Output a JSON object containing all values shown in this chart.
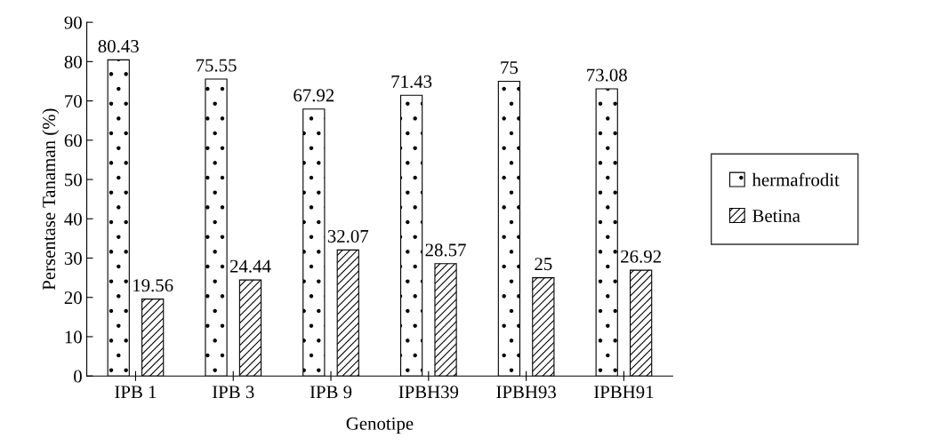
{
  "chart_data": {
    "type": "bar",
    "xlabel": "Genotipe",
    "ylabel": "Persentase Tanaman (%)",
    "categories": [
      "IPB 1",
      "IPB 3",
      "IPB 9",
      "IPBH39",
      "IPBH93",
      "IPBH91"
    ],
    "series": [
      {
        "name": "hermafrodit",
        "color": "#ffffff",
        "values": [
          80.43,
          75.55,
          67.92,
          71.43,
          75,
          73.08
        ]
      },
      {
        "name": "Betina",
        "color": "#ffffff",
        "values": [
          19.56,
          24.44,
          32.07,
          28.57,
          25,
          26.92
        ]
      }
    ],
    "ylim": [
      0,
      90
    ],
    "yticks": [
      0,
      10,
      20,
      30,
      40,
      50,
      60,
      70,
      80,
      90
    ],
    "data_labels": true,
    "legend": "right",
    "grid": false
  }
}
